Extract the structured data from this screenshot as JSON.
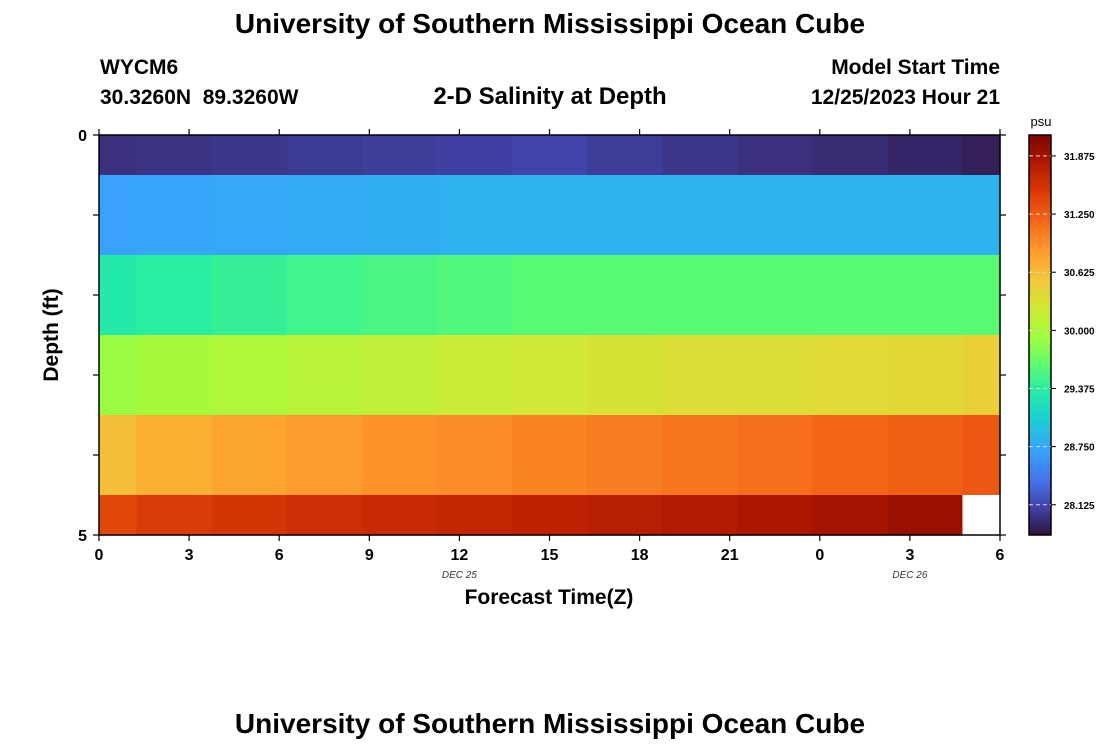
{
  "header": {
    "title": "University of Southern Mississippi Ocean Cube",
    "station_id": "WYCM6",
    "station_coords": "30.3260N  89.3260W",
    "subtitle": "2-D Salinity at Depth",
    "model_start_label": "Model Start Time",
    "model_start_value": "12/25/2023 Hour 21"
  },
  "footer": {
    "title": "University of Southern Mississippi Ocean Cube"
  },
  "chart_data": {
    "type": "heatmap",
    "title": "2-D Salinity at Depth",
    "xlabel": "Forecast Time(Z)",
    "ylabel": "Depth (ft)",
    "x_tick_labels": [
      "0",
      "3",
      "6",
      "9",
      "12",
      "15",
      "18",
      "21",
      "0",
      "3",
      "6"
    ],
    "x_hours": [
      0,
      3,
      6,
      9,
      12,
      15,
      18,
      21,
      24,
      27,
      30
    ],
    "date_labels": [
      {
        "label": "DEC 25",
        "hour": 12
      },
      {
        "label": "DEC 26",
        "hour": 27
      }
    ],
    "xlim": [
      0,
      30
    ],
    "y_tick_labels": [
      "0",
      "5"
    ],
    "ylim": [
      0,
      5
    ],
    "colorbar": {
      "unit": "psu",
      "min": 27.8,
      "max": 32.1,
      "ticks": [
        "28.125",
        "28.750",
        "29.375",
        "30.000",
        "30.625",
        "31.250",
        "31.875"
      ]
    },
    "depth_bands": [
      [
        0,
        0.5
      ],
      [
        0.5,
        1.5
      ],
      [
        1.5,
        2.5
      ],
      [
        2.5,
        3.5
      ],
      [
        3.5,
        4.5
      ],
      [
        4.5,
        5
      ]
    ],
    "time_columns": [
      [
        0,
        1.25
      ],
      [
        1.25,
        3.75
      ],
      [
        3.75,
        6.25
      ],
      [
        6.25,
        8.75
      ],
      [
        8.75,
        11.25
      ],
      [
        11.25,
        13.75
      ],
      [
        13.75,
        16.25
      ],
      [
        16.25,
        18.75
      ],
      [
        18.75,
        21.25
      ],
      [
        21.25,
        23.75
      ],
      [
        23.75,
        26.25
      ],
      [
        26.25,
        28.75
      ],
      [
        28.75,
        30
      ]
    ],
    "values": [
      [
        27.98,
        28.0,
        28.02,
        28.04,
        28.06,
        28.08,
        28.1,
        28.06,
        28.02,
        27.98,
        27.96,
        27.92,
        27.88
      ],
      [
        28.72,
        28.74,
        28.76,
        28.78,
        28.8,
        28.82,
        28.84,
        28.84,
        28.84,
        28.84,
        28.84,
        28.84,
        28.84
      ],
      [
        29.3,
        29.36,
        29.42,
        29.48,
        29.52,
        29.56,
        29.6,
        29.6,
        29.6,
        29.6,
        29.6,
        29.6,
        29.6
      ],
      [
        29.9,
        29.96,
        30.02,
        30.08,
        30.14,
        30.2,
        30.26,
        30.3,
        30.34,
        30.36,
        30.38,
        30.4,
        30.48
      ],
      [
        30.62,
        30.72,
        30.8,
        30.86,
        30.92,
        30.96,
        31.0,
        31.04,
        31.08,
        31.12,
        31.16,
        31.2,
        31.26
      ],
      [
        31.38,
        31.46,
        31.52,
        31.58,
        31.62,
        31.66,
        31.7,
        31.74,
        31.78,
        31.82,
        31.86,
        31.92,
        null
      ]
    ]
  }
}
